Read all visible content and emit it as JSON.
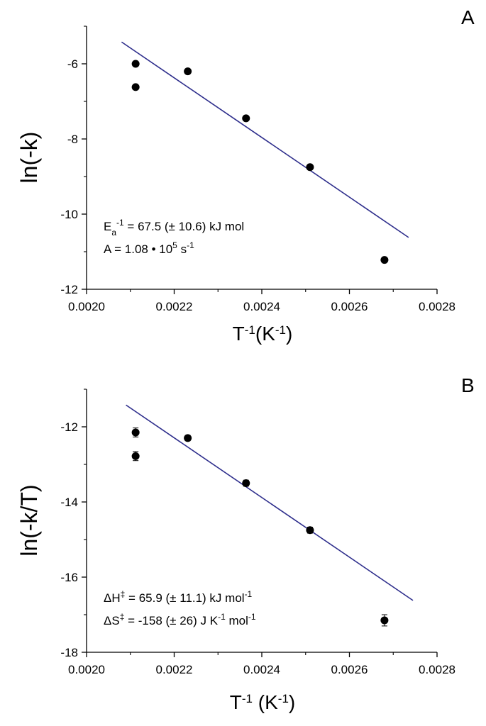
{
  "chart_data": [
    {
      "type": "scatter",
      "panel_label": "A",
      "title": "",
      "xlabel": {
        "base": "T",
        "sup": "-1",
        "rest": "(K",
        "sup2": "-1",
        "end": ")"
      },
      "ylabel": "ln(-k)",
      "xlim": [
        0.002,
        0.0028
      ],
      "ylim": [
        -12,
        -5
      ],
      "xticks": [
        0.002,
        0.0022,
        0.0024,
        0.0026,
        0.0028
      ],
      "xtick_labels": [
        "0.0020",
        "0.0022",
        "0.0024",
        "0.0026",
        "0.0028"
      ],
      "yticks": [
        -12,
        -10,
        -8,
        -6
      ],
      "ytick_labels": [
        "-12",
        "-10",
        "-8",
        "-6"
      ],
      "grid": false,
      "series": [
        {
          "kind": "points",
          "x": [
            0.002112,
            0.002112,
            0.002231,
            0.002364,
            0.00251,
            0.00268
          ],
          "y": [
            -6.0,
            -6.62,
            -6.2,
            -7.45,
            -8.75,
            -11.22
          ]
        },
        {
          "kind": "fit",
          "x": [
            0.00208,
            0.002735
          ],
          "y": [
            -5.42,
            -10.62
          ],
          "color": "#2e2e8c"
        }
      ],
      "annotations": [
        {
          "base": "E",
          "sub": "a",
          "text": " = 67.5 (± 10.6) kJ mol",
          "sup": "-1",
          "end": ""
        },
        {
          "base": "A = 1.08 • 10",
          "sup": "5",
          "text": " s",
          "sup2": "-1",
          "end": ""
        }
      ]
    },
    {
      "type": "scatter",
      "panel_label": "B",
      "title": "",
      "xlabel": {
        "base": "T",
        "sup": "-1",
        "rest": " (K",
        "sup2": "-1",
        "end": ")"
      },
      "ylabel": "ln(-k/T)",
      "xlim": [
        0.002,
        0.0028
      ],
      "ylim": [
        -18,
        -11
      ],
      "xticks": [
        0.002,
        0.0022,
        0.0024,
        0.0026,
        0.0028
      ],
      "xtick_labels": [
        "0.0020",
        "0.0022",
        "0.0024",
        "0.0026",
        "0.0028"
      ],
      "yticks": [
        -18,
        -16,
        -14,
        -12
      ],
      "ytick_labels": [
        "-18",
        "-16",
        "-14",
        "-12"
      ],
      "grid": false,
      "series": [
        {
          "kind": "points",
          "x": [
            0.002112,
            0.002112,
            0.002231,
            0.002364,
            0.00251,
            0.00268
          ],
          "y": [
            -12.15,
            -12.78,
            -12.3,
            -13.5,
            -14.75,
            -17.15
          ],
          "yerr": [
            0.12,
            0.12,
            0.07,
            0.08,
            0.08,
            0.15
          ]
        },
        {
          "kind": "fit",
          "x": [
            0.00209,
            0.002745
          ],
          "y": [
            -11.42,
            -16.62
          ],
          "color": "#2e2e8c"
        }
      ],
      "annotations": [
        {
          "base": "ΔH",
          "sup": "‡",
          "text": " = 65.9 (± 11.1) kJ mol",
          "sup2": "-1",
          "end": ""
        },
        {
          "base": "ΔS",
          "sup": "‡",
          "text": " = -158 (± 26) J K",
          "sup2": "-1",
          "mid": " mol",
          "sup3": "-1"
        }
      ]
    }
  ]
}
